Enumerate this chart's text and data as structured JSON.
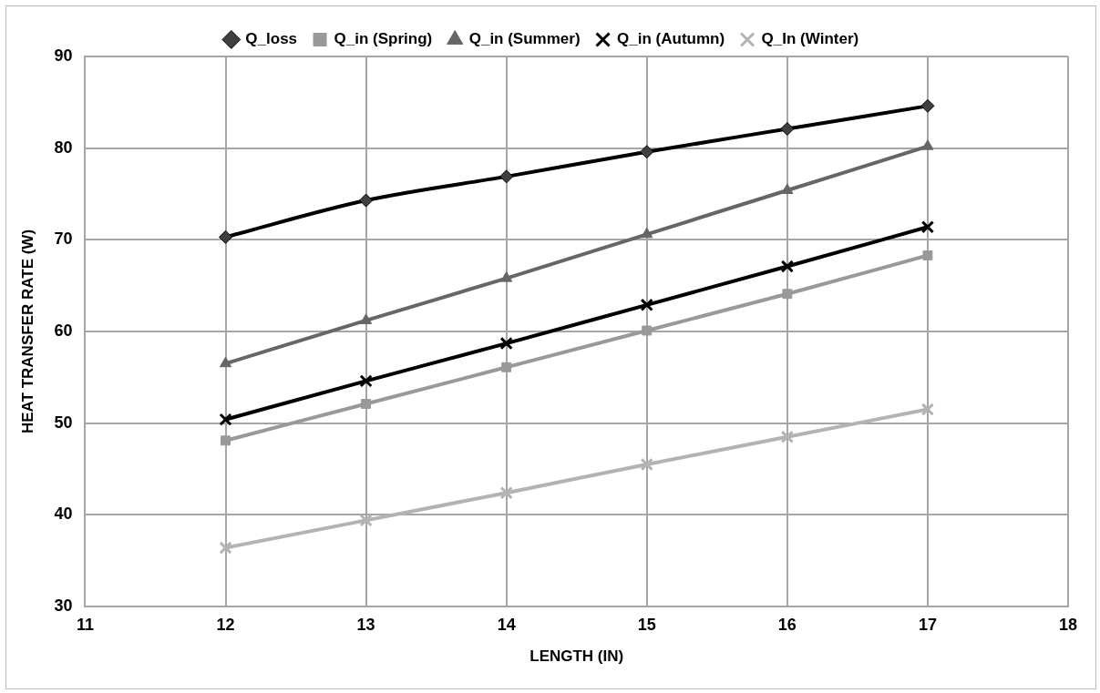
{
  "chart_data": {
    "type": "line",
    "xlabel": "LENGTH (IN)",
    "ylabel": "HEAT TRANSFER RATE (W)",
    "x": [
      12,
      13,
      14,
      15,
      16,
      17
    ],
    "xlim": [
      11,
      18
    ],
    "xticks": [
      11,
      12,
      13,
      14,
      15,
      16,
      17,
      18
    ],
    "ylim": [
      30,
      90
    ],
    "yticks": [
      30,
      40,
      50,
      60,
      70,
      80,
      90
    ],
    "grid": true,
    "legend": "top",
    "line_style": "solid",
    "series": [
      {
        "name": "Q_loss",
        "color": "#000000",
        "marker": "diamond",
        "values": [
          70.3,
          74.3,
          76.9,
          79.6,
          82.1,
          84.6
        ]
      },
      {
        "name": "Q_in (Spring)",
        "color": "#999999",
        "marker": "square",
        "values": [
          48.1,
          52.1,
          56.1,
          60.1,
          64.1,
          68.3
        ]
      },
      {
        "name": "Q_in (Summer)",
        "color": "#666666",
        "marker": "triangle",
        "values": [
          56.5,
          61.2,
          65.8,
          70.6,
          75.4,
          80.2
        ]
      },
      {
        "name": "Q_in (Autumn)",
        "color": "#000000",
        "marker": "cross",
        "values": [
          50.4,
          54.6,
          58.7,
          62.9,
          67.1,
          71.4
        ]
      },
      {
        "name": "Q_In (Winter)",
        "color": "#b3b3b3",
        "marker": "cross",
        "values": [
          36.4,
          39.4,
          42.4,
          45.5,
          48.5,
          51.5
        ]
      }
    ]
  }
}
